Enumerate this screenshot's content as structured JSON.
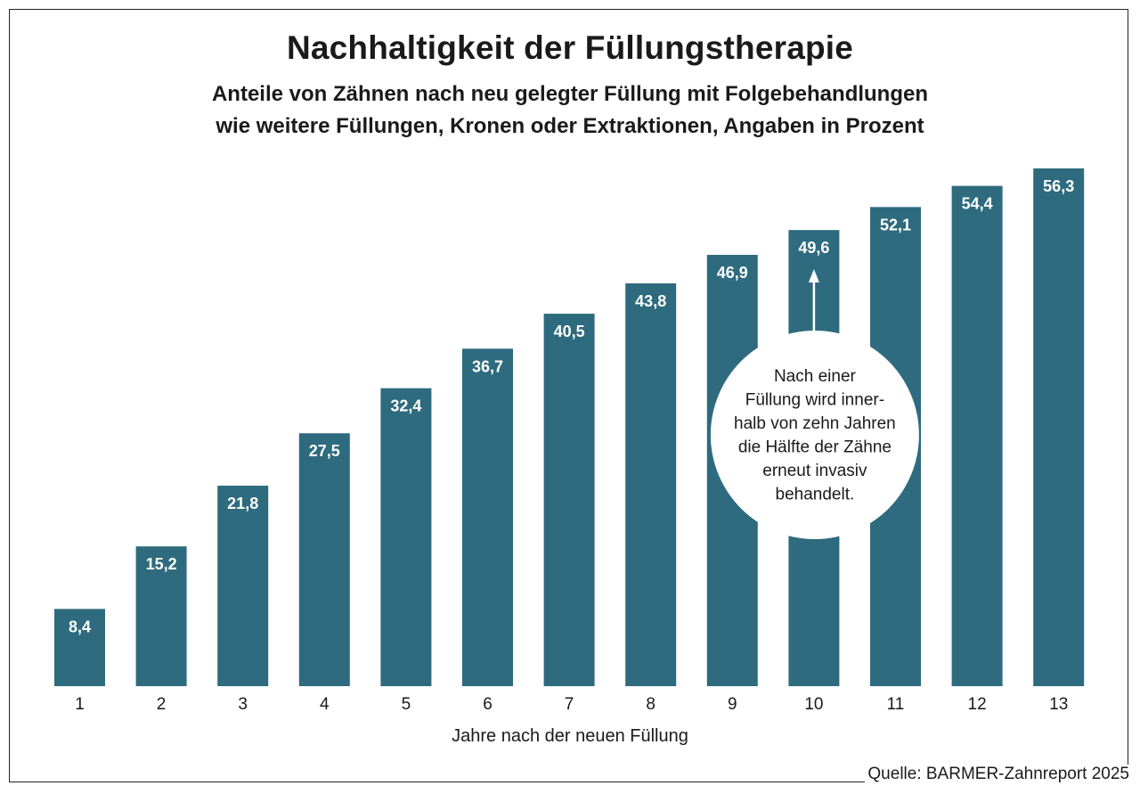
{
  "title": "Nachhaltigkeit der Füllungstherapie",
  "subtitle_line1": "Anteile von Zähnen nach neu gelegter Füllung mit Folgebehandlungen",
  "subtitle_line2": "wie weitere Füllungen, Kronen oder Extraktionen, Angaben in Prozent",
  "source": "Quelle: BARMER-Zahnreport 2025",
  "colors": {
    "bar": "#2e6b7e",
    "bar_label": "#ffffff",
    "text": "#1a1a1a"
  },
  "chart_data": {
    "type": "bar",
    "categories": [
      "1",
      "2",
      "3",
      "4",
      "5",
      "6",
      "7",
      "8",
      "9",
      "10",
      "11",
      "12",
      "13"
    ],
    "values": [
      8.4,
      15.2,
      21.8,
      27.5,
      32.4,
      36.7,
      40.5,
      43.8,
      46.9,
      49.6,
      52.1,
      54.4,
      56.3
    ],
    "value_labels": [
      "8,4",
      "15,2",
      "21,8",
      "27,5",
      "32,4",
      "36,7",
      "40,5",
      "43,8",
      "46,9",
      "49,6",
      "52,1",
      "54,4",
      "56,3"
    ],
    "title": "Nachhaltigkeit der Füllungstherapie",
    "xlabel": "Jahre nach der neuen Füllung",
    "ylabel": "",
    "ylim": [
      0,
      56.3
    ],
    "grid": false,
    "legend": "none",
    "annotation": {
      "category": "10",
      "lines": [
        "Nach einer",
        "Füllung wird inner-",
        "halb von zehn Jahren",
        "die Hälfte der Zähne",
        "erneut invasiv",
        "behandelt."
      ]
    }
  }
}
